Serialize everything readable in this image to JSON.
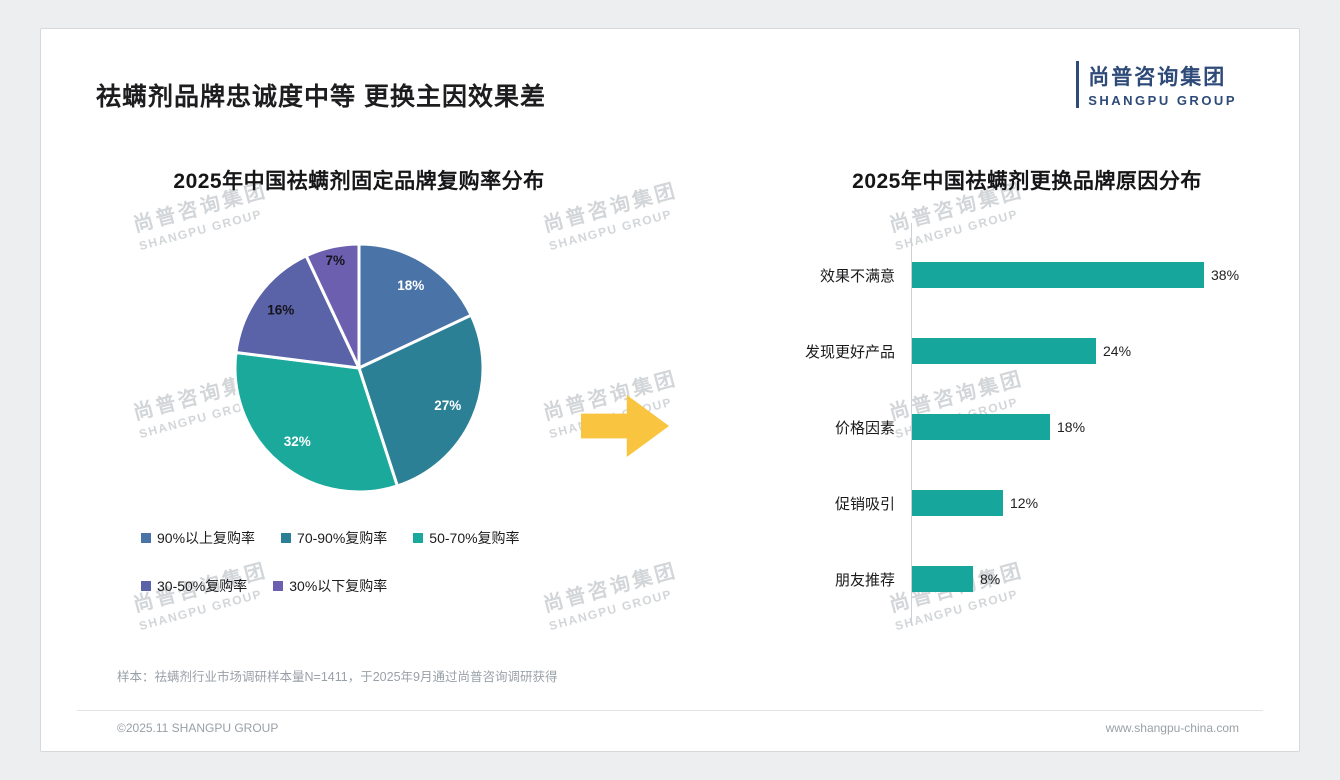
{
  "page": {
    "title": "祛螨剂品牌忠诚度中等 更换主因效果差",
    "logo": {
      "cn": "尚普咨询集团",
      "en": "SHANGPU GROUP"
    },
    "watermark": {
      "cn": "尚普咨询集团",
      "en": "SHANGPU GROUP"
    },
    "sample_note": "样本：祛螨剂行业市场调研样本量N=1411，于2025年9月通过尚普咨询调研获得",
    "footer": {
      "left": "©2025.11 SHANGPU GROUP",
      "right": "www.shangpu-china.com"
    }
  },
  "chart_data": [
    {
      "type": "pie",
      "title": "2025年中国祛螨剂固定品牌复购率分布",
      "labels": [
        "90%以上复购率",
        "70-90%复购率",
        "50-70%复购率",
        "30-50%复购率",
        "30%以下复购率"
      ],
      "values": [
        18,
        27,
        32,
        16,
        7
      ],
      "value_labels": [
        "18%",
        "27%",
        "32%",
        "16%",
        "7%"
      ],
      "colors": [
        "#4a74a8",
        "#2b8096",
        "#1ba99c",
        "#5a62a8",
        "#6c5fb0"
      ],
      "label_colors": [
        "#ffffff",
        "#ffffff",
        "#ffffff",
        "#14141a",
        "#14141a"
      ],
      "start_angle_deg": 0,
      "direction": "clockwise",
      "legend_position": "bottom"
    },
    {
      "type": "bar",
      "orientation": "horizontal",
      "title": "2025年中国祛螨剂更换品牌原因分布",
      "categories": [
        "效果不满意",
        "发现更好产品",
        "价格因素",
        "促销吸引",
        "朋友推荐"
      ],
      "values": [
        38,
        24,
        18,
        12,
        8
      ],
      "value_labels": [
        "38%",
        "24%",
        "18%",
        "12%",
        "8%"
      ],
      "bar_color": "#17a69b",
      "xlim": [
        0,
        40
      ],
      "grid": false
    }
  ]
}
